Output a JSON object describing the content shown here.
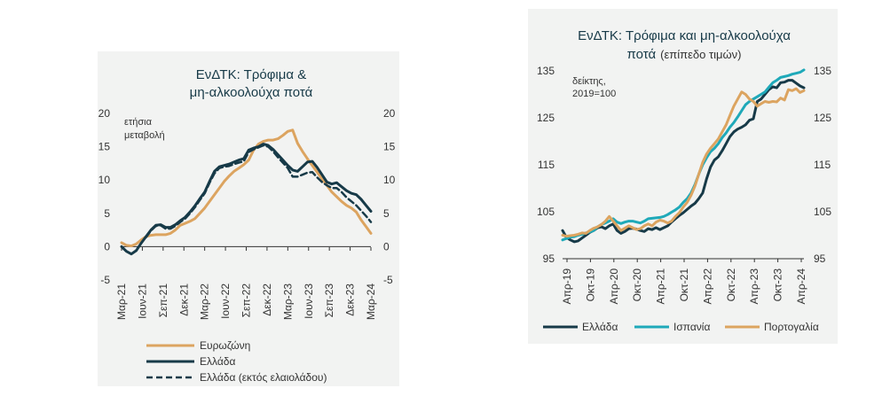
{
  "chart_data": [
    {
      "type": "line",
      "title_lines": [
        "ΕνΔΤΚ: Τρόφιμα &",
        "μη-αλκοολούχα ποτά"
      ],
      "ylabel_lines": [
        "ετήσια",
        "μεταβολή"
      ],
      "ylim": [
        -5,
        20
      ],
      "yticks": [
        "-5",
        "0",
        "5",
        "10",
        "15",
        "20"
      ],
      "ytick_values": [
        -5,
        0,
        5,
        10,
        15,
        20
      ],
      "x_tick_labels": [
        "Μαρ-21",
        "Ιουν-21",
        "Σεπ-21",
        "Δεκ-21",
        "Μαρ-22",
        "Ιουν-22",
        "Σεπ-22",
        "Δεκ-22",
        "Μαρ-23",
        "Ιουν-23",
        "Σεπ-23",
        "Δεκ-23",
        "Μαρ-24"
      ],
      "legend_position": "bottom",
      "series": [
        {
          "name": "Ευρωζώνη",
          "color": "#dca460",
          "style": "solid",
          "values": [
            0.6,
            0.2,
            0.1,
            0.4,
            1.0,
            1.5,
            1.7,
            1.8,
            1.8,
            1.8,
            2.0,
            2.5,
            3.2,
            3.5,
            3.8,
            4.2,
            5.0,
            5.8,
            6.8,
            7.8,
            8.8,
            9.8,
            10.6,
            11.3,
            11.8,
            12.3,
            13.0,
            14.5,
            15.4,
            15.8,
            16.0,
            16.0,
            16.2,
            16.7,
            17.3,
            17.5,
            15.5,
            14.3,
            13.2,
            12.2,
            11.2,
            10.2,
            9.2,
            8.2,
            7.5,
            6.8,
            6.2,
            5.8,
            5.2,
            4.0,
            3.0,
            2.0
          ]
        },
        {
          "name": "Ελλάδα",
          "color": "#173a48",
          "style": "solid",
          "values": [
            0.0,
            -0.7,
            -1.1,
            -0.6,
            0.5,
            1.5,
            2.5,
            3.2,
            3.3,
            2.9,
            2.9,
            3.3,
            3.9,
            4.4,
            5.2,
            6.1,
            7.2,
            8.2,
            9.8,
            11.3,
            12.0,
            12.2,
            12.4,
            12.7,
            13.0,
            13.2,
            14.5,
            14.8,
            15.0,
            15.4,
            15.2,
            14.6,
            13.8,
            13.0,
            12.2,
            11.5,
            11.3,
            12.0,
            12.7,
            12.8,
            11.9,
            10.8,
            9.7,
            9.4,
            9.6,
            9.0,
            8.4,
            8.0,
            7.8,
            7.1,
            6.2,
            5.3
          ]
        },
        {
          "name": "Ελλάδα (εκτός ελαιολάδου)",
          "color": "#173a48",
          "style": "dashed",
          "values": [
            null,
            null,
            null,
            null,
            null,
            1.4,
            2.4,
            3.1,
            3.2,
            2.7,
            2.7,
            3.1,
            3.7,
            4.2,
            5.0,
            5.9,
            7.0,
            8.0,
            9.6,
            11.0,
            11.8,
            12.0,
            12.1,
            12.4,
            12.6,
            12.8,
            14.2,
            14.6,
            14.9,
            15.2,
            15.0,
            14.3,
            13.4,
            12.6,
            11.8,
            10.5,
            10.5,
            10.8,
            11.1,
            11.2,
            10.4,
            9.7,
            9.2,
            8.8,
            8.8,
            8.2,
            7.4,
            6.8,
            6.2,
            5.4,
            4.6,
            3.7
          ]
        }
      ]
    },
    {
      "type": "line",
      "title_lines": [
        "ΕνΔΤΚ: Τρόφιμα και μη-αλκοολούχα",
        "ποτά"
      ],
      "title_suffix": "(επίπεδο τιμών)",
      "ylabel_lines": [
        "δείκτης,",
        "2019=100"
      ],
      "ylim": [
        95,
        135
      ],
      "yticks": [
        "95",
        "105",
        "115",
        "125",
        "135"
      ],
      "ytick_values": [
        95,
        105,
        115,
        125,
        135
      ],
      "x_tick_labels": [
        "Απρ-19",
        "Οκτ-19",
        "Απρ-20",
        "Οκτ-20",
        "Απρ-21",
        "Οκτ-21",
        "Απρ-22",
        "Οκτ-22",
        "Απρ-23",
        "Οκτ-23",
        "Απρ-24"
      ],
      "legend_position": "bottom",
      "series": [
        {
          "name": "Ελλάδα",
          "color": "#173a48",
          "style": "solid",
          "values": [
            101.0,
            99.5,
            99.0,
            98.6,
            98.8,
            99.4,
            100.0,
            100.6,
            101.0,
            101.6,
            101.8,
            101.4,
            102.0,
            102.4,
            101.0,
            100.4,
            100.8,
            101.4,
            101.5,
            101.3,
            101.0,
            100.8,
            101.4,
            101.2,
            101.6,
            101.2,
            101.6,
            102.0,
            102.8,
            103.5,
            104.2,
            104.8,
            105.5,
            106.2,
            106.8,
            107.8,
            109.0,
            112.0,
            114.5,
            116.0,
            116.7,
            118.0,
            119.5,
            121.0,
            122.0,
            122.6,
            123.0,
            123.5,
            124.5,
            124.8,
            128.5,
            129.0,
            130.0,
            131.0,
            131.6,
            131.4,
            132.5,
            132.6,
            133.0,
            133.0,
            132.4,
            131.8,
            131.4
          ]
        },
        {
          "name": "Ισπανία",
          "color": "#1fa9b9",
          "style": "solid",
          "values": [
            99.0,
            99.3,
            99.6,
            99.7,
            100.0,
            100.2,
            100.5,
            100.7,
            101.0,
            101.8,
            102.3,
            102.6,
            103.0,
            103.5,
            102.8,
            102.5,
            102.8,
            103.0,
            103.0,
            102.8,
            102.6,
            103.0,
            103.5,
            103.6,
            103.7,
            103.8,
            104.0,
            104.4,
            104.9,
            105.4,
            106.0,
            107.0,
            107.8,
            109.0,
            110.8,
            113.0,
            115.0,
            116.5,
            117.8,
            118.5,
            119.5,
            120.8,
            121.8,
            123.0,
            124.0,
            125.2,
            126.5,
            127.8,
            128.5,
            129.0,
            129.5,
            130.0,
            130.5,
            131.5,
            132.5,
            133.0,
            133.6,
            133.8,
            134.0,
            134.3,
            134.5,
            134.7,
            135.2
          ]
        },
        {
          "name": "Πορτογαλία",
          "color": "#dca460",
          "style": "solid",
          "values": [
            100.0,
            99.8,
            99.9,
            100.0,
            100.2,
            100.5,
            100.4,
            101.0,
            101.5,
            101.8,
            102.3,
            103.0,
            104.0,
            103.0,
            102.0,
            101.0,
            101.5,
            102.0,
            101.6,
            101.2,
            101.4,
            102.0,
            102.4,
            102.0,
            102.8,
            103.2,
            103.0,
            102.6,
            103.0,
            104.0,
            104.8,
            106.0,
            107.0,
            108.5,
            110.5,
            113.0,
            115.5,
            117.3,
            118.5,
            119.5,
            120.5,
            122.0,
            123.5,
            125.5,
            127.5,
            129.0,
            130.5,
            130.0,
            129.0,
            128.5,
            127.5,
            128.0,
            128.5,
            128.3,
            128.5,
            128.4,
            129.2,
            128.8,
            131.0,
            130.8,
            131.2,
            130.4,
            130.8
          ]
        }
      ]
    }
  ]
}
